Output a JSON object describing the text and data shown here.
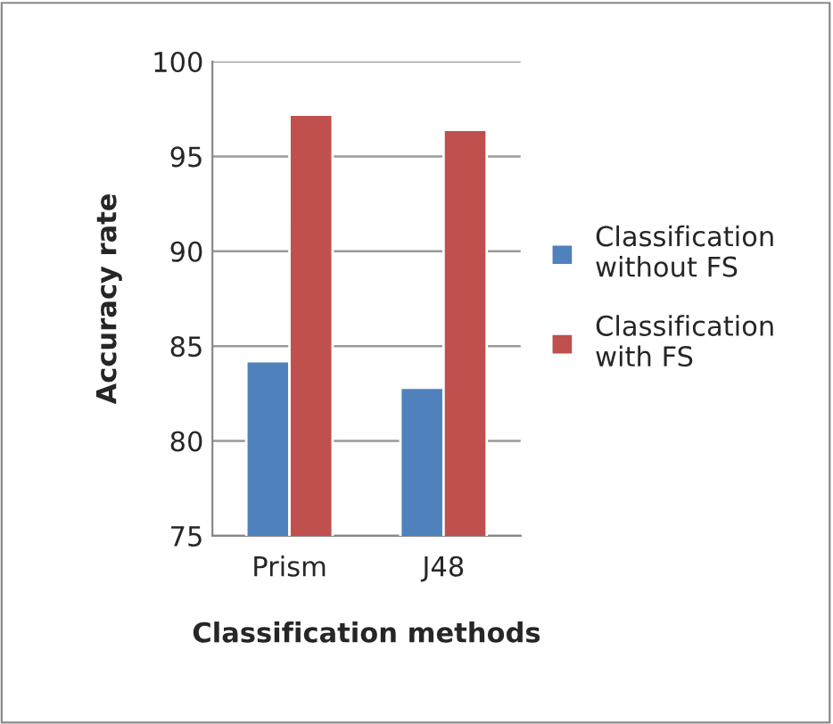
{
  "chart_data": {
    "type": "bar",
    "xlabel": "Classification methods",
    "ylabel": "Accuracy rate",
    "categories": [
      "Prism",
      "J48"
    ],
    "series": [
      {
        "name": "Classification without FS",
        "color": "#4f81bd",
        "values": [
          84.2,
          82.8
        ]
      },
      {
        "name": "Classification with FS",
        "color": "#c0504d",
        "values": [
          97.2,
          96.4
        ]
      }
    ],
    "ylim": [
      75,
      100
    ],
    "yticks": [
      75,
      80,
      85,
      90,
      95,
      100
    ],
    "grid": "y",
    "legend": "right"
  }
}
